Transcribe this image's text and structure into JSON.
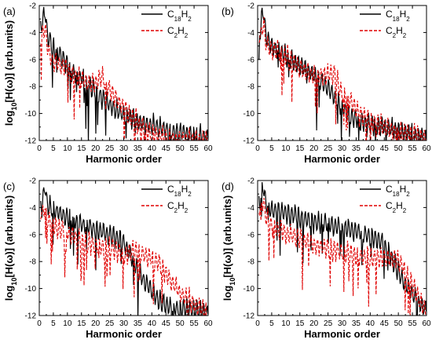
{
  "figure": {
    "series_styles": {
      "C18H2": {
        "color": "#000000",
        "dash": "none"
      },
      "C2H2": {
        "color": "#e00000",
        "dash": "4,2"
      }
    }
  },
  "chart_data": [
    {
      "type": "line",
      "panel_label": "(a)",
      "xlabel": "Harmonic order",
      "ylabel_parts": {
        "pre": "log",
        "sub": "10",
        "post": "[H(ω)] (arb.units)"
      },
      "xlim": [
        0,
        60
      ],
      "ylim": [
        -12,
        -2
      ],
      "xticks": [
        0,
        5,
        10,
        15,
        20,
        25,
        30,
        35,
        40,
        45,
        50,
        55,
        60
      ],
      "yticks": [
        -12,
        -10,
        -8,
        -6,
        -4,
        -2
      ],
      "legend": "top-right",
      "series": [
        {
          "key": "C18H2",
          "name_parts": [
            "C",
            "18",
            "H",
            "2"
          ],
          "x": [
            1,
            2,
            3,
            5,
            8,
            10,
            12,
            15,
            17,
            20,
            22,
            24,
            27,
            30,
            33,
            36,
            40,
            45,
            50,
            55,
            60
          ],
          "y": [
            -3.5,
            -2.4,
            -4.3,
            -5.2,
            -5.8,
            -6.4,
            -7.0,
            -7.4,
            -7.8,
            -8.4,
            -8.8,
            -9.2,
            -9.7,
            -10.1,
            -10.4,
            -10.7,
            -10.9,
            -11.2,
            -11.4,
            -11.6,
            -11.8
          ]
        },
        {
          "key": "C2H2",
          "name_parts": [
            "C",
            "2",
            "H",
            "2"
          ],
          "x": [
            1,
            2,
            3,
            5,
            8,
            10,
            12,
            15,
            17,
            20,
            22,
            24,
            27,
            30,
            33,
            36,
            40,
            45,
            50,
            55,
            60
          ],
          "y": [
            -4.2,
            -3.5,
            -5.2,
            -6.2,
            -6.4,
            -6.8,
            -7.2,
            -7.5,
            -7.8,
            -7.8,
            -7.3,
            -8.0,
            -8.8,
            -9.6,
            -10.4,
            -11.0,
            -11.5,
            -11.8,
            -12.0,
            -12.0,
            -12.0
          ]
        }
      ]
    },
    {
      "type": "line",
      "panel_label": "(b)",
      "xlabel": "Harmonic order",
      "ylabel_parts": {
        "pre": "",
        "sub": "",
        "post": ""
      },
      "xlim": [
        0,
        60
      ],
      "ylim": [
        -12,
        -2
      ],
      "xticks": [
        0,
        5,
        10,
        15,
        20,
        25,
        30,
        35,
        40,
        45,
        50,
        55,
        60
      ],
      "yticks": [
        -12,
        -10,
        -8,
        -6,
        -4,
        -2
      ],
      "legend": "top-right",
      "series": [
        {
          "key": "C18H2",
          "name_parts": [
            "C",
            "18",
            "H",
            "2"
          ],
          "x": [
            1,
            2,
            3,
            5,
            8,
            10,
            13,
            16,
            20,
            24,
            27,
            30,
            33,
            36,
            40,
            45,
            50,
            55,
            60
          ],
          "y": [
            -3.8,
            -2.3,
            -4.3,
            -5.0,
            -5.4,
            -5.8,
            -6.2,
            -6.6,
            -7.2,
            -7.9,
            -8.6,
            -9.5,
            -10.2,
            -10.5,
            -10.8,
            -11.0,
            -11.4,
            -11.6,
            -11.8
          ]
        },
        {
          "key": "C2H2",
          "name_parts": [
            "C",
            "2",
            "H",
            "2"
          ],
          "x": [
            1,
            2,
            3,
            5,
            8,
            10,
            13,
            16,
            20,
            24,
            27,
            30,
            33,
            36,
            40,
            45,
            50,
            55,
            60
          ],
          "y": [
            -4.2,
            -3.4,
            -4.8,
            -5.3,
            -5.5,
            -5.8,
            -6.3,
            -6.8,
            -7.2,
            -7.2,
            -7.1,
            -8.6,
            -9.0,
            -10.0,
            -10.6,
            -11.0,
            -11.4,
            -11.6,
            -11.8
          ]
        }
      ]
    },
    {
      "type": "line",
      "panel_label": "(c)",
      "xlabel": "Harmonic order",
      "ylabel_parts": {
        "pre": "log",
        "sub": "10",
        "post": "[H(ω)] (arb.units)"
      },
      "xlim": [
        0,
        60
      ],
      "ylim": [
        -12,
        -2
      ],
      "xticks": [
        0,
        5,
        10,
        15,
        20,
        25,
        30,
        35,
        40,
        45,
        50,
        55,
        60
      ],
      "yticks": [
        -12,
        -10,
        -8,
        -6,
        -4,
        -2
      ],
      "legend": "top-right",
      "series": [
        {
          "key": "C18H2",
          "name_parts": [
            "C",
            "18",
            "H",
            "2"
          ],
          "x": [
            1,
            2,
            3,
            5,
            8,
            10,
            13,
            16,
            20,
            24,
            27,
            30,
            33,
            36,
            40,
            43,
            46,
            50,
            55,
            60
          ],
          "y": [
            -3.8,
            -2.4,
            -4.0,
            -4.2,
            -4.5,
            -4.8,
            -5.0,
            -5.3,
            -5.6,
            -6.0,
            -6.2,
            -6.6,
            -7.8,
            -9.0,
            -10.2,
            -11.0,
            -11.4,
            -11.5,
            -11.6,
            -11.8
          ]
        },
        {
          "key": "C2H2",
          "name_parts": [
            "C",
            "2",
            "H",
            "2"
          ],
          "x": [
            1,
            2,
            3,
            5,
            8,
            10,
            13,
            16,
            20,
            24,
            27,
            30,
            33,
            36,
            40,
            43,
            46,
            50,
            55,
            60
          ],
          "y": [
            -4.4,
            -4.0,
            -4.9,
            -5.4,
            -5.6,
            -5.9,
            -6.2,
            -6.6,
            -6.8,
            -7.0,
            -7.1,
            -7.5,
            -7.3,
            -7.4,
            -7.8,
            -8.2,
            -9.2,
            -10.4,
            -11.2,
            -11.8
          ]
        }
      ]
    },
    {
      "type": "line",
      "panel_label": "(d)",
      "xlabel": "Harmonic order",
      "ylabel_parts": {
        "pre": "log",
        "sub": "10",
        "post": "[H(ω)] (arb.units)"
      },
      "xlim": [
        0,
        60
      ],
      "ylim": [
        -12,
        -2
      ],
      "xticks": [
        0,
        5,
        10,
        15,
        20,
        25,
        30,
        35,
        40,
        45,
        50,
        55,
        60
      ],
      "yticks": [
        -12,
        -10,
        -8,
        -6,
        -4,
        -2
      ],
      "legend": "top-right",
      "series": [
        {
          "key": "C18H2",
          "name_parts": [
            "C",
            "18",
            "H",
            "2"
          ],
          "x": [
            1,
            2,
            3,
            5,
            8,
            10,
            13,
            16,
            20,
            24,
            28,
            32,
            36,
            40,
            44,
            48,
            50,
            52,
            55,
            58,
            60
          ],
          "y": [
            -3.4,
            -2.3,
            -3.8,
            -4.2,
            -4.3,
            -4.4,
            -4.6,
            -4.8,
            -5.0,
            -5.2,
            -5.4,
            -5.6,
            -5.8,
            -6.1,
            -6.5,
            -7.8,
            -8.8,
            -9.6,
            -10.4,
            -11.2,
            -11.6
          ]
        },
        {
          "key": "C2H2",
          "name_parts": [
            "C",
            "2",
            "H",
            "2"
          ],
          "x": [
            1,
            2,
            3,
            5,
            8,
            10,
            13,
            16,
            20,
            24,
            28,
            32,
            36,
            40,
            44,
            48,
            50,
            52,
            55,
            58,
            60
          ],
          "y": [
            -4.0,
            -3.4,
            -4.8,
            -5.3,
            -5.6,
            -5.9,
            -6.1,
            -6.4,
            -6.7,
            -7.0,
            -7.2,
            -7.4,
            -7.6,
            -7.8,
            -7.7,
            -7.9,
            -8.0,
            -8.5,
            -9.8,
            -11.0,
            -11.8
          ]
        }
      ]
    }
  ]
}
